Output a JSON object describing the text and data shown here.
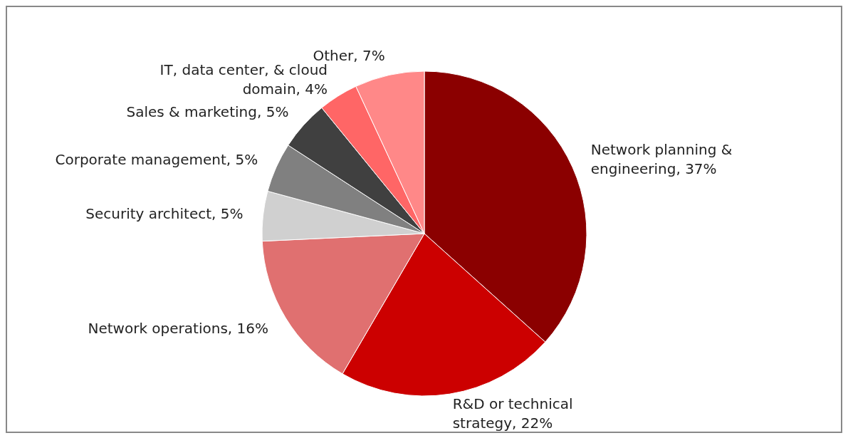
{
  "chart_data": {
    "type": "pie",
    "categories": [
      "Network planning & engineering",
      "R&D or technical strategy",
      "Network operations",
      "Security architect",
      "Corporate management",
      "Sales & marketing",
      "IT, data center, & cloud domain",
      "Other"
    ],
    "values": [
      37,
      22,
      16,
      5,
      5,
      5,
      4,
      7
    ],
    "value_labels": [
      "37%",
      "22%",
      "16%",
      "5%",
      "5%",
      "5%",
      "4%",
      "7%"
    ],
    "colors": [
      "#8b0000",
      "#cc0000",
      "#e07070",
      "#d0d0d0",
      "#808080",
      "#404040",
      "#ff6666",
      "#ff8888"
    ]
  }
}
